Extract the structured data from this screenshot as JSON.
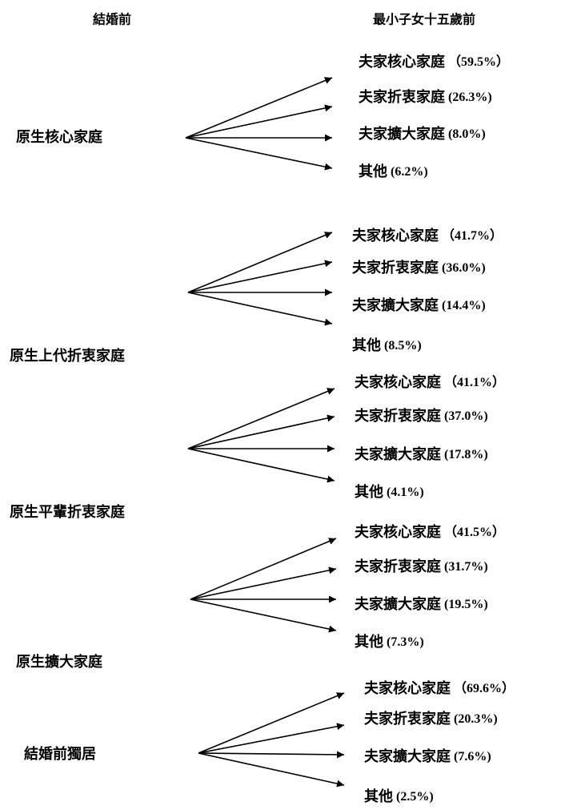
{
  "header": {
    "left": "結婚前",
    "right": "最小子女十五歲前"
  },
  "groups": [
    {
      "source": "原生核心家庭",
      "outcomes": [
        {
          "label": "夫家核心家庭",
          "share": "（59.5%）"
        },
        {
          "label": "夫家折衷家庭",
          "share": "(26.3%)"
        },
        {
          "label": "夫家擴大家庭",
          "share": "(8.0%)"
        },
        {
          "label": "其他",
          "share": "(6.2%)"
        }
      ]
    },
    {
      "source": "原生上代折衷家庭",
      "outcomes": [
        {
          "label": "夫家核心家庭",
          "share": "（41.7%）"
        },
        {
          "label": "夫家折衷家庭",
          "share": "(36.0%)"
        },
        {
          "label": "夫家擴大家庭",
          "share": "(14.4%)"
        },
        {
          "label": "其他",
          "share": "(8.5%)"
        }
      ]
    },
    {
      "source": "原生平輩折衷家庭",
      "outcomes": [
        {
          "label": "夫家核心家庭",
          "share": "（41.1%）"
        },
        {
          "label": "夫家折衷家庭",
          "share": "(37.0%)"
        },
        {
          "label": "夫家擴大家庭",
          "share": "(17.8%)"
        },
        {
          "label": "其他",
          "share": "(4.1%)"
        }
      ]
    },
    {
      "source": "原生擴大家庭",
      "outcomes": [
        {
          "label": "夫家核心家庭",
          "share": "（41.5%）"
        },
        {
          "label": "夫家折衷家庭",
          "share": "(31.7%)"
        },
        {
          "label": "夫家擴大家庭",
          "share": "(19.5%)"
        },
        {
          "label": "其他",
          "share": "(7.3%)"
        }
      ]
    },
    {
      "source": "結婚前獨居",
      "outcomes": [
        {
          "label": "夫家核心家庭",
          "share": "（69.6%）"
        },
        {
          "label": "夫家折衷家庭",
          "share": "(20.3%)"
        },
        {
          "label": "夫家擴大家庭",
          "share": "(7.6%)"
        },
        {
          "label": "其他",
          "share": "(2.5%)"
        }
      ]
    }
  ]
}
